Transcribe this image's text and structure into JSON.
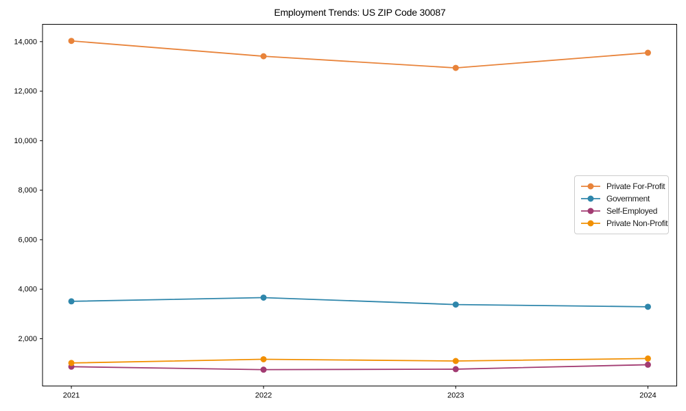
{
  "chart_data": {
    "type": "line",
    "title": "Employment Trends: US ZIP Code 30087",
    "categories": [
      2021,
      2022,
      2023,
      2024
    ],
    "x_tick_labels": [
      "2021",
      "2022",
      "2023",
      "2024"
    ],
    "series": [
      {
        "name": "Private For-Profit",
        "color": "#E8833A",
        "values": [
          14030,
          13410,
          12940,
          13550
        ]
      },
      {
        "name": "Government",
        "color": "#2E86AB",
        "values": [
          3510,
          3660,
          3380,
          3290
        ]
      },
      {
        "name": "Self-Employed",
        "color": "#A23B72",
        "values": [
          870,
          750,
          770,
          950
        ]
      },
      {
        "name": "Private Non-Profit",
        "color": "#F18F01",
        "values": [
          1020,
          1170,
          1100,
          1200
        ]
      }
    ],
    "xlabel": "",
    "ylabel": "",
    "xlim": [
      2020.85,
      2024.15
    ],
    "ylim": [
      90,
      14700
    ],
    "y_ticks": [
      2000,
      4000,
      6000,
      8000,
      10000,
      12000,
      14000
    ],
    "y_tick_labels": [
      "2,000",
      "4,000",
      "6,000",
      "8,000",
      "10,000",
      "12,000",
      "14,000"
    ],
    "grid": false,
    "legend_position": "center-right",
    "marker": "circle",
    "line_width": 1.8,
    "marker_radius": 4.5
  }
}
